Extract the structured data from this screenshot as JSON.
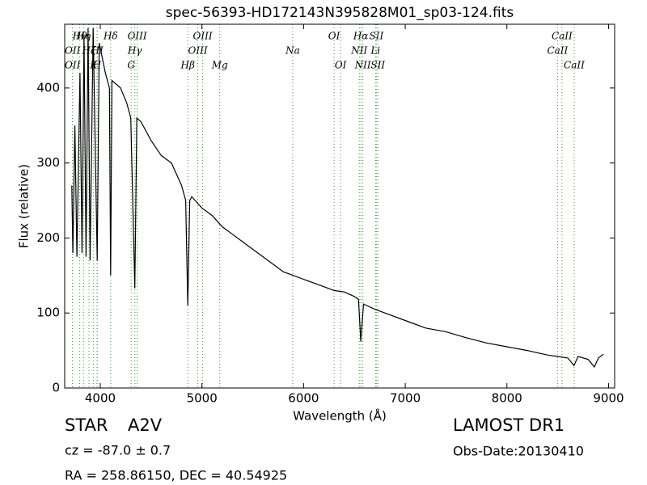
{
  "chart_data": {
    "type": "line",
    "title": "spec-56393-HD172143N395828M01_sp03-124.fits",
    "xlabel": "Wavelength (Å)",
    "ylabel": "Flux (relative)",
    "color": "#000000",
    "line_color": "#2ca02c",
    "xlim": [
      3650,
      9060
    ],
    "ylim": [
      0,
      485
    ],
    "xticks": [
      4000,
      5000,
      6000,
      7000,
      8000,
      9000
    ],
    "yticks": [
      0,
      100,
      200,
      300,
      400
    ],
    "x": [
      3720,
      3730,
      3750,
      3770,
      3800,
      3820,
      3840,
      3860,
      3880,
      3900,
      3930,
      3970,
      3990,
      4050,
      4090,
      4102,
      4115,
      4200,
      4260,
      4300,
      4340,
      4360,
      4400,
      4500,
      4600,
      4700,
      4800,
      4840,
      4861,
      4880,
      4900,
      5000,
      5100,
      5200,
      5300,
      5400,
      5500,
      5600,
      5700,
      5800,
      5900,
      6000,
      6100,
      6200,
      6300,
      6400,
      6500,
      6540,
      6563,
      6590,
      6700,
      6800,
      7000,
      7200,
      7400,
      7600,
      7800,
      8000,
      8200,
      8300,
      8400,
      8500,
      8600,
      8660,
      8700,
      8800,
      8860,
      8900,
      8950
    ],
    "values": [
      270,
      180,
      350,
      175,
      420,
      180,
      470,
      175,
      480,
      170,
      480,
      170,
      460,
      420,
      400,
      150,
      410,
      400,
      380,
      360,
      133,
      360,
      355,
      330,
      310,
      300,
      270,
      250,
      110,
      250,
      255,
      240,
      230,
      215,
      205,
      195,
      185,
      175,
      165,
      155,
      150,
      145,
      140,
      135,
      130,
      128,
      122,
      118,
      62,
      112,
      105,
      100,
      90,
      80,
      75,
      67,
      60,
      55,
      50,
      47,
      44,
      42,
      40,
      30,
      42,
      38,
      28,
      40,
      45
    ],
    "spectral_lines": {
      "top": [
        {
          "label": "Hθ",
          "wavelength": 3798
        },
        {
          "label": "Hη",
          "wavelength": 3835
        },
        {
          "label": "Hδ",
          "wavelength": 4102
        },
        {
          "label": "OIII",
          "wavelength": 4363
        },
        {
          "label": "OIII",
          "wavelength": 5007
        },
        {
          "label": "OI",
          "wavelength": 6300
        },
        {
          "label": "Hα",
          "wavelength": 6563
        },
        {
          "label": "SII",
          "wavelength": 6716
        },
        {
          "label": "CaII",
          "wavelength": 8542
        }
      ],
      "middle": [
        {
          "label": "OII",
          "wavelength": 3727
        },
        {
          "label": "Hζ",
          "wavelength": 3889
        },
        {
          "label": "HI",
          "wavelength": 3970
        },
        {
          "label": "Hγ",
          "wavelength": 4340
        },
        {
          "label": "OIII",
          "wavelength": 4959
        },
        {
          "label": "Na",
          "wavelength": 5893
        },
        {
          "label": "NII",
          "wavelength": 6548
        },
        {
          "label": "Li",
          "wavelength": 6708
        },
        {
          "label": "CaII",
          "wavelength": 8498
        }
      ],
      "bottom": [
        {
          "label": "OII",
          "wavelength": 3727
        },
        {
          "label": "K",
          "wavelength": 3934
        },
        {
          "label": "H",
          "wavelength": 3968
        },
        {
          "label": "G",
          "wavelength": 4304
        },
        {
          "label": "Hβ",
          "wavelength": 4861
        },
        {
          "label": "Mg",
          "wavelength": 5175
        },
        {
          "label": "OI",
          "wavelength": 6364
        },
        {
          "label": "NII",
          "wavelength": 6583
        },
        {
          "label": "SII",
          "wavelength": 6731
        },
        {
          "label": "CaII",
          "wavelength": 8662
        }
      ]
    }
  },
  "footer": {
    "object_type": "STAR",
    "class": "A2V",
    "cz": "cz = -87.0 ± 0.7",
    "coords": "RA = 258.86150, DEC = 40.54925",
    "survey": "LAMOST DR1",
    "obs_date": "Obs-Date:20130410"
  }
}
